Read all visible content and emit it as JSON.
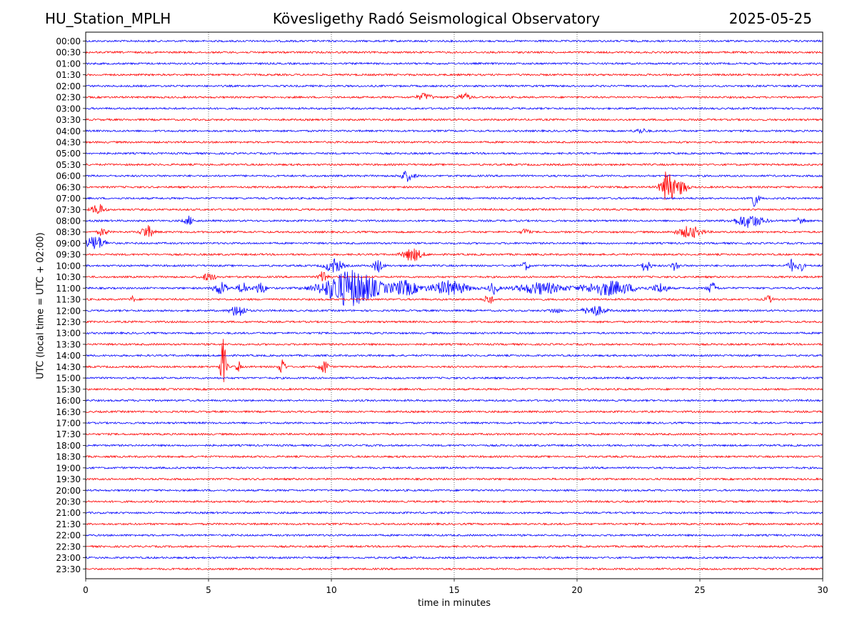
{
  "header": {
    "station": "HU_Station_MPLH",
    "title": "Kövesligethy Radó Seismological Observatory",
    "date": "2025-05-25"
  },
  "chart_data": {
    "type": "line",
    "title": "Kövesligethy Radó Seismological Observatory",
    "xlabel": "time in minutes",
    "ylabel": "UTC (local time = UTC + 02:00)",
    "xlim": [
      0,
      30
    ],
    "x_ticks": [
      "0",
      "5",
      "10",
      "15",
      "20",
      "25",
      "30"
    ],
    "x_grid": "dotted vertical lines at 5-minute intervals",
    "colors": {
      "even_rows": "#0000ff",
      "odd_rows": "#ff0000"
    },
    "rows": [
      "00:00",
      "00:30",
      "01:00",
      "01:30",
      "02:00",
      "02:30",
      "03:00",
      "03:30",
      "04:00",
      "04:30",
      "05:00",
      "05:30",
      "06:00",
      "06:30",
      "07:00",
      "07:30",
      "08:00",
      "08:30",
      "09:00",
      "09:30",
      "10:00",
      "10:30",
      "11:00",
      "11:30",
      "12:00",
      "12:30",
      "13:00",
      "13:30",
      "14:00",
      "14:30",
      "15:00",
      "15:30",
      "16:00",
      "16:30",
      "17:00",
      "17:30",
      "18:00",
      "18:30",
      "19:00",
      "19:30",
      "20:00",
      "20:30",
      "21:00",
      "21:30",
      "22:00",
      "22:30",
      "23:00",
      "23:30"
    ],
    "events": [
      {
        "row": "02:30",
        "minute": 13.8,
        "amplitude": 5,
        "duration": 0.6
      },
      {
        "row": "02:30",
        "minute": 15.4,
        "amplitude": 5,
        "duration": 0.5
      },
      {
        "row": "04:00",
        "minute": 22.6,
        "amplitude": 3,
        "duration": 0.5
      },
      {
        "row": "06:00",
        "minute": 13.1,
        "amplitude": 7,
        "duration": 0.6
      },
      {
        "row": "06:30",
        "minute": 23.7,
        "amplitude": 24,
        "duration": 0.6
      },
      {
        "row": "06:30",
        "minute": 24.3,
        "amplitude": 12,
        "duration": 0.4
      },
      {
        "row": "07:00",
        "minute": 27.2,
        "amplitude": 10,
        "duration": 0.4
      },
      {
        "row": "07:30",
        "minute": 0.5,
        "amplitude": 8,
        "duration": 0.5
      },
      {
        "row": "08:00",
        "minute": 4.2,
        "amplitude": 6,
        "duration": 0.4
      },
      {
        "row": "08:00",
        "minute": 27.0,
        "amplitude": 9,
        "duration": 1.2
      },
      {
        "row": "08:00",
        "minute": 29.1,
        "amplitude": 5,
        "duration": 0.4
      },
      {
        "row": "08:30",
        "minute": 0.7,
        "amplitude": 5,
        "duration": 0.4
      },
      {
        "row": "08:30",
        "minute": 2.5,
        "amplitude": 9,
        "duration": 0.5
      },
      {
        "row": "08:30",
        "minute": 17.9,
        "amplitude": 5,
        "duration": 0.3
      },
      {
        "row": "08:30",
        "minute": 24.6,
        "amplitude": 8,
        "duration": 1.0
      },
      {
        "row": "09:00",
        "minute": 0.4,
        "amplitude": 10,
        "duration": 0.8
      },
      {
        "row": "09:30",
        "minute": 13.3,
        "amplitude": 9,
        "duration": 0.8
      },
      {
        "row": "10:00",
        "minute": 10.1,
        "amplitude": 10,
        "duration": 0.7
      },
      {
        "row": "10:00",
        "minute": 11.9,
        "amplitude": 9,
        "duration": 0.4
      },
      {
        "row": "10:00",
        "minute": 17.9,
        "amplitude": 6,
        "duration": 0.3
      },
      {
        "row": "10:00",
        "minute": 22.8,
        "amplitude": 8,
        "duration": 0.4
      },
      {
        "row": "10:00",
        "minute": 24.0,
        "amplitude": 7,
        "duration": 0.3
      },
      {
        "row": "10:00",
        "minute": 28.7,
        "amplitude": 9,
        "duration": 0.3
      },
      {
        "row": "10:00",
        "minute": 29.1,
        "amplitude": 7,
        "duration": 0.3
      },
      {
        "row": "10:30",
        "minute": 5.0,
        "amplitude": 5,
        "duration": 0.6
      },
      {
        "row": "10:30",
        "minute": 9.7,
        "amplitude": 9,
        "duration": 0.4
      },
      {
        "row": "11:00",
        "minute": 5.5,
        "amplitude": 9,
        "duration": 0.6
      },
      {
        "row": "11:00",
        "minute": 6.4,
        "amplitude": 9,
        "duration": 0.4
      },
      {
        "row": "11:00",
        "minute": 7.1,
        "amplitude": 8,
        "duration": 0.5
      },
      {
        "row": "11:00",
        "minute": 10.8,
        "amplitude": 26,
        "duration": 2.4
      },
      {
        "row": "11:00",
        "minute": 13.0,
        "amplitude": 10,
        "duration": 1.2
      },
      {
        "row": "11:00",
        "minute": 14.8,
        "amplitude": 10,
        "duration": 1.6
      },
      {
        "row": "11:00",
        "minute": 16.6,
        "amplitude": 8,
        "duration": 0.4
      },
      {
        "row": "11:00",
        "minute": 18.5,
        "amplitude": 8,
        "duration": 2.0
      },
      {
        "row": "11:00",
        "minute": 21.3,
        "amplitude": 10,
        "duration": 2.2
      },
      {
        "row": "11:00",
        "minute": 23.4,
        "amplitude": 7,
        "duration": 0.6
      },
      {
        "row": "11:00",
        "minute": 25.5,
        "amplitude": 8,
        "duration": 0.4
      },
      {
        "row": "11:30",
        "minute": 1.9,
        "amplitude": 4,
        "duration": 0.2
      },
      {
        "row": "11:30",
        "minute": 16.4,
        "amplitude": 9,
        "duration": 0.3
      },
      {
        "row": "11:30",
        "minute": 27.8,
        "amplitude": 5,
        "duration": 0.3
      },
      {
        "row": "12:00",
        "minute": 6.2,
        "amplitude": 9,
        "duration": 0.6
      },
      {
        "row": "12:00",
        "minute": 20.7,
        "amplitude": 7,
        "duration": 0.9
      },
      {
        "row": "12:00",
        "minute": 19.1,
        "amplitude": 3,
        "duration": 0.5
      },
      {
        "row": "14:30",
        "minute": 5.6,
        "amplitude": 38,
        "duration": 0.25
      },
      {
        "row": "14:30",
        "minute": 6.2,
        "amplitude": 9,
        "duration": 0.2
      },
      {
        "row": "14:30",
        "minute": 8.0,
        "amplitude": 14,
        "duration": 0.25
      },
      {
        "row": "14:30",
        "minute": 9.7,
        "amplitude": 10,
        "duration": 0.35
      }
    ]
  }
}
